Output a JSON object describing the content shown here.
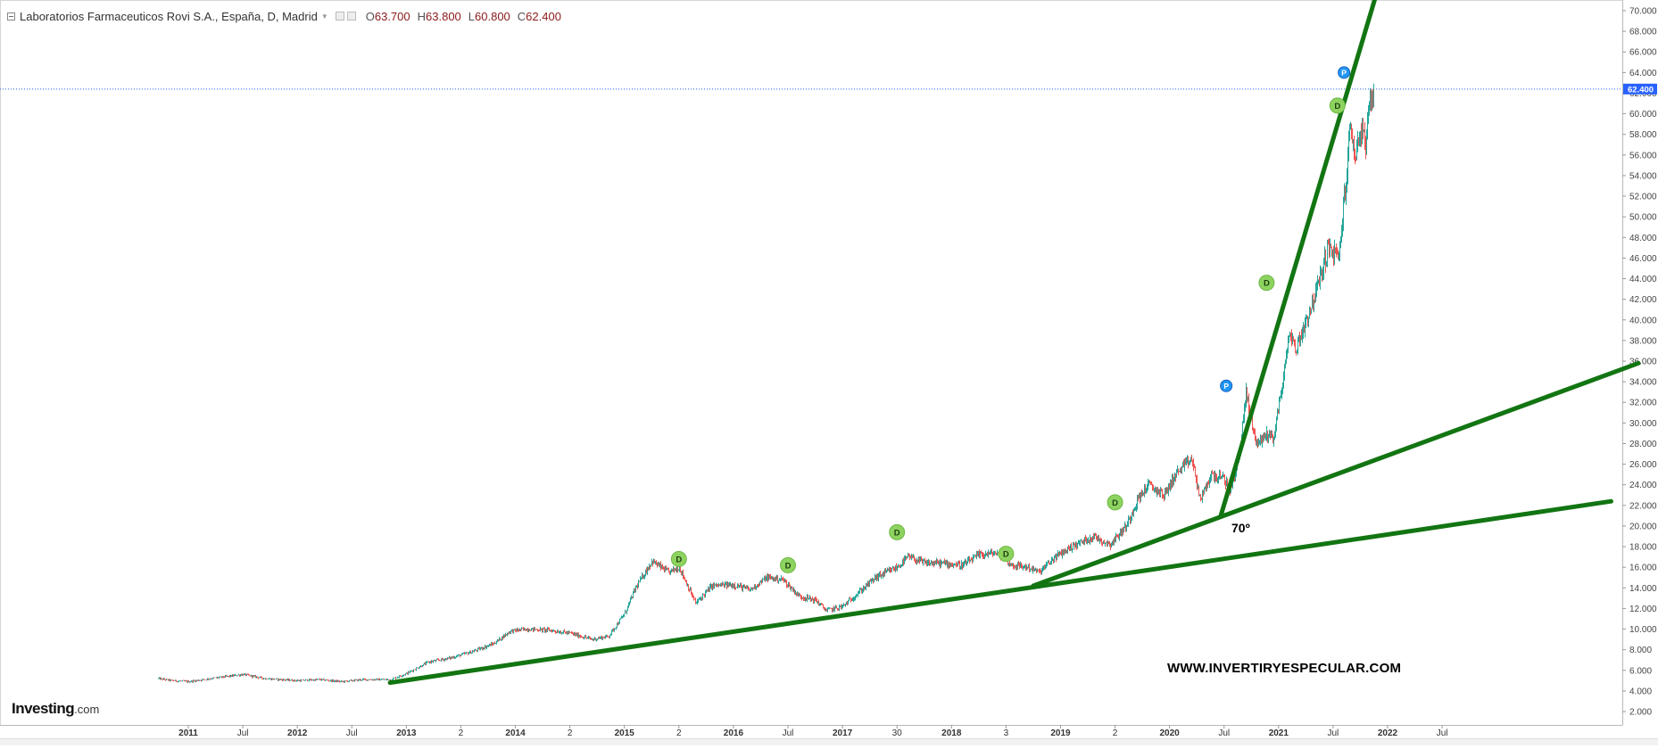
{
  "header": {
    "symbol": "Laboratorios Farmaceuticos Rovi S.A., España, D, Madrid",
    "open_label": "O",
    "open": "63.700",
    "high_label": "H",
    "high": "63.800",
    "low_label": "L",
    "low": "60.800",
    "close_label": "C",
    "close": "62.400"
  },
  "logo": {
    "brand": "Investing",
    "domain": ".com"
  },
  "watermark": "WWW.INVERTIRYESPECULAR.COM",
  "annotation": "70º",
  "colors": {
    "up_candle": "#26a69a",
    "down_candle": "#ef5350",
    "trendline": "#127512",
    "dividend_marker": "#8dd35f",
    "split_marker": "#2196f3",
    "price_line": "#2962ff"
  },
  "chart_data": {
    "type": "line",
    "title": "Laboratorios Farmaceuticos Rovi S.A., España, D, Madrid",
    "ylim": [
      2,
      70
    ],
    "y_ticks": [
      "2.000",
      "4.000",
      "6.000",
      "8.000",
      "10.000",
      "12.000",
      "14.000",
      "16.000",
      "18.000",
      "20.000",
      "22.000",
      "24.000",
      "26.000",
      "28.000",
      "30.000",
      "32.000",
      "34.000",
      "36.000",
      "38.000",
      "40.000",
      "42.000",
      "44.000",
      "46.000",
      "48.000",
      "50.000",
      "52.000",
      "54.000",
      "56.000",
      "58.000",
      "60.000",
      "62.000",
      "64.000",
      "66.000",
      "68.000",
      "70.000"
    ],
    "x_ticks": [
      {
        "label": "2011",
        "t": 2011.0,
        "bold": true
      },
      {
        "label": "Jul",
        "t": 2011.5,
        "bold": false
      },
      {
        "label": "2012",
        "t": 2012.0,
        "bold": true
      },
      {
        "label": "Jul",
        "t": 2012.5,
        "bold": false
      },
      {
        "label": "2013",
        "t": 2013.0,
        "bold": true
      },
      {
        "label": "2",
        "t": 2013.5,
        "bold": false
      },
      {
        "label": "2014",
        "t": 2014.0,
        "bold": true
      },
      {
        "label": "2",
        "t": 2014.5,
        "bold": false
      },
      {
        "label": "2015",
        "t": 2015.0,
        "bold": true
      },
      {
        "label": "2",
        "t": 2015.5,
        "bold": false
      },
      {
        "label": "2016",
        "t": 2016.0,
        "bold": true
      },
      {
        "label": "Jul",
        "t": 2016.5,
        "bold": false
      },
      {
        "label": "2017",
        "t": 2017.0,
        "bold": true
      },
      {
        "label": "30",
        "t": 2017.5,
        "bold": false
      },
      {
        "label": "2018",
        "t": 2018.0,
        "bold": true
      },
      {
        "label": "3",
        "t": 2018.5,
        "bold": false
      },
      {
        "label": "2019",
        "t": 2019.0,
        "bold": true
      },
      {
        "label": "2",
        "t": 2019.5,
        "bold": false
      },
      {
        "label": "2020",
        "t": 2020.0,
        "bold": true
      },
      {
        "label": "Jul",
        "t": 2020.5,
        "bold": false
      },
      {
        "label": "2021",
        "t": 2021.0,
        "bold": true
      },
      {
        "label": "Jul",
        "t": 2021.5,
        "bold": false
      },
      {
        "label": "2022",
        "t": 2022.0,
        "bold": true
      },
      {
        "label": "Jul",
        "t": 2022.5,
        "bold": false
      }
    ],
    "last_price": "62.400",
    "last_price_value": 62.4,
    "price_series": [
      [
        2010.72,
        5.2
      ],
      [
        2010.85,
        5.0
      ],
      [
        2011.0,
        4.9
      ],
      [
        2011.2,
        5.2
      ],
      [
        2011.5,
        5.6
      ],
      [
        2011.7,
        5.2
      ],
      [
        2012.0,
        5.0
      ],
      [
        2012.2,
        5.1
      ],
      [
        2012.4,
        4.9
      ],
      [
        2012.6,
        5.1
      ],
      [
        2012.85,
        5.1
      ],
      [
        2013.0,
        5.7
      ],
      [
        2013.2,
        6.8
      ],
      [
        2013.4,
        7.2
      ],
      [
        2013.6,
        7.8
      ],
      [
        2013.8,
        8.6
      ],
      [
        2013.95,
        9.8
      ],
      [
        2014.1,
        10.0
      ],
      [
        2014.3,
        9.9
      ],
      [
        2014.5,
        9.6
      ],
      [
        2014.7,
        9.0
      ],
      [
        2014.85,
        9.3
      ],
      [
        2015.0,
        11.5
      ],
      [
        2015.1,
        14.0
      ],
      [
        2015.25,
        16.6
      ],
      [
        2015.4,
        15.5
      ],
      [
        2015.5,
        16.0
      ],
      [
        2015.65,
        12.5
      ],
      [
        2015.8,
        14.2
      ],
      [
        2016.0,
        14.3
      ],
      [
        2016.15,
        13.8
      ],
      [
        2016.3,
        15.0
      ],
      [
        2016.45,
        14.8
      ],
      [
        2016.6,
        13.2
      ],
      [
        2016.75,
        12.8
      ],
      [
        2016.85,
        11.8
      ],
      [
        2017.0,
        12.2
      ],
      [
        2017.15,
        13.6
      ],
      [
        2017.3,
        15.0
      ],
      [
        2017.5,
        16.0
      ],
      [
        2017.6,
        17.0
      ],
      [
        2017.75,
        16.4
      ],
      [
        2017.9,
        16.4
      ],
      [
        2018.1,
        16.2
      ],
      [
        2018.25,
        17.2
      ],
      [
        2018.4,
        17.4
      ],
      [
        2018.55,
        16.2
      ],
      [
        2018.7,
        16.0
      ],
      [
        2018.8,
        15.5
      ],
      [
        2018.95,
        17.0
      ],
      [
        2019.1,
        18.0
      ],
      [
        2019.3,
        19.0
      ],
      [
        2019.45,
        18.2
      ],
      [
        2019.6,
        20.0
      ],
      [
        2019.7,
        22.5
      ],
      [
        2019.8,
        24.0
      ],
      [
        2019.95,
        23.0
      ],
      [
        2020.05,
        25.0
      ],
      [
        2020.2,
        26.5
      ],
      [
        2020.28,
        22.5
      ],
      [
        2020.38,
        25.0
      ],
      [
        2020.5,
        24.5
      ],
      [
        2020.55,
        23.5
      ],
      [
        2020.6,
        25.0
      ],
      [
        2020.65,
        28.0
      ],
      [
        2020.7,
        33.0
      ],
      [
        2020.75,
        30.0
      ],
      [
        2020.8,
        28.0
      ],
      [
        2020.9,
        29.0
      ],
      [
        2020.95,
        28.5
      ],
      [
        2021.05,
        35.0
      ],
      [
        2021.1,
        39.0
      ],
      [
        2021.15,
        37.0
      ],
      [
        2021.25,
        40.0
      ],
      [
        2021.35,
        43.0
      ],
      [
        2021.45,
        47.0
      ],
      [
        2021.55,
        46.0
      ],
      [
        2021.6,
        52.0
      ],
      [
        2021.63,
        55.0
      ],
      [
        2021.65,
        59.0
      ],
      [
        2021.7,
        56.0
      ],
      [
        2021.75,
        58.5
      ],
      [
        2021.8,
        57.0
      ],
      [
        2021.83,
        60.5
      ],
      [
        2021.87,
        62.4
      ]
    ],
    "trendlines": [
      [
        [
          2012.85,
          4.8
        ],
        [
          2024.05,
          22.4
        ]
      ],
      [
        [
          2018.75,
          14.2
        ],
        [
          2024.3,
          35.8
        ]
      ],
      [
        [
          2020.47,
          21.0
        ],
        [
          2021.95,
          73.5
        ]
      ]
    ],
    "markers": [
      {
        "kind": "D",
        "t": 2015.5,
        "y": 16.8
      },
      {
        "kind": "D",
        "t": 2016.5,
        "y": 16.2
      },
      {
        "kind": "D",
        "t": 2017.5,
        "y": 19.4
      },
      {
        "kind": "D",
        "t": 2018.5,
        "y": 17.3
      },
      {
        "kind": "D",
        "t": 2019.5,
        "y": 22.3
      },
      {
        "kind": "P",
        "t": 2020.52,
        "y": 33.6
      },
      {
        "kind": "D",
        "t": 2020.89,
        "y": 43.6
      },
      {
        "kind": "D",
        "t": 2021.54,
        "y": 60.8
      },
      {
        "kind": "P",
        "t": 2021.6,
        "y": 64.0
      }
    ]
  }
}
